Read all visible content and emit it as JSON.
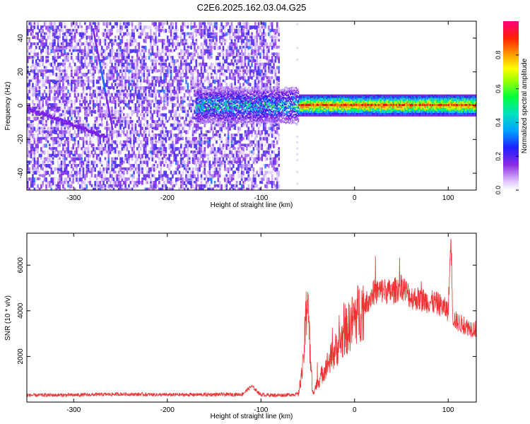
{
  "title": "C2E6.2025.162.03.04.G25",
  "chart_data": [
    {
      "type": "heatmap",
      "xlabel": "Height of straight line (km)",
      "ylabel": "Frequency (Hz)",
      "xlim": [
        -350,
        130
      ],
      "ylim": [
        -50,
        50
      ],
      "x_ticks": [
        "-300",
        "-200",
        "-100",
        "0",
        "100"
      ],
      "y_ticks": [
        "40",
        "20",
        "0",
        "-20",
        "-40"
      ],
      "colorbar": {
        "label": "Normalized spectral amplitude",
        "range": [
          0,
          1
        ],
        "ticks": [
          "0.0",
          "0.2",
          "0.4",
          "0.6",
          "0.8"
        ]
      },
      "noise_region_x": [
        -350,
        -80
      ],
      "signal_ridge": {
        "x_start": -170,
        "x_end": 130,
        "frequency": 0,
        "peak_amplitude_x": [
          -60,
          130
        ]
      }
    },
    {
      "type": "line",
      "xlabel": "Height of straight line (km)",
      "ylabel": "SNR (10 * v/v)",
      "xlim": [
        -350,
        130
      ],
      "ylim": [
        0,
        7400
      ],
      "x_ticks": [
        "-300",
        "-200",
        "-100",
        "0",
        "100"
      ],
      "y_ticks": [
        "6000",
        "4000",
        "2000"
      ],
      "color": "#ee3333",
      "series": [
        {
          "x": [
            -350,
            -300,
            -250,
            -200,
            -150,
            -120,
            -110,
            -100,
            -80,
            -60,
            -55,
            -50,
            -48,
            -45,
            -40,
            -30,
            -20,
            -10,
            0,
            10,
            20,
            30,
            40,
            50,
            60,
            70,
            80,
            90,
            100,
            103,
            105,
            110,
            120,
            130
          ],
          "y": [
            300,
            310,
            350,
            320,
            330,
            340,
            700,
            320,
            300,
            350,
            1600,
            5000,
            2500,
            400,
            800,
            1600,
            2300,
            3000,
            3700,
            4200,
            4800,
            4900,
            4800,
            5100,
            4600,
            4500,
            4400,
            4300,
            4000,
            7300,
            3700,
            3500,
            3300,
            3200
          ]
        }
      ]
    }
  ]
}
